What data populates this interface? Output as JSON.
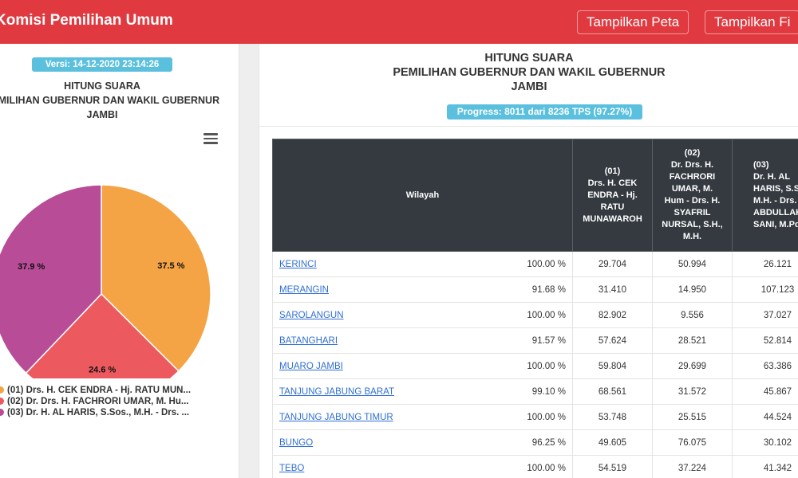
{
  "header": {
    "brand": "Komisi Pemilihan Umum",
    "btn_map": "Tampilkan Peta",
    "btn_filter": "Tampilkan Fi"
  },
  "left": {
    "version": "Versi: 14-12-2020 23:14:26",
    "title_line1": "HITUNG SUARA",
    "title_line2": "PEMILIHAN GUBERNUR DAN WAKIL GUBERNUR",
    "title_line3": "JAMBI",
    "menu_icon": "hamburger-menu-icon",
    "legend": [
      {
        "label": "(01) Drs. H. CEK ENDRA - Hj. RATU MUN...",
        "color": "#f4a444"
      },
      {
        "label": "(02) Dr. Drs. H. FACHRORI UMAR, M. Hu...",
        "color": "#ec5a60"
      },
      {
        "label": "(03) Dr. H. AL HARIS, S.Sos., M.H. - Drs. ...",
        "color": "#b84c96"
      }
    ]
  },
  "chart_data": {
    "type": "pie",
    "values": [
      37.5,
      24.6,
      37.9
    ],
    "labels": [
      "37.5 %",
      "24.6 %",
      "37.9 %"
    ],
    "colors": [
      "#f4a444",
      "#ec5a60",
      "#b84c96"
    ]
  },
  "right": {
    "title_line1": "HITUNG SUARA",
    "title_line2": "PEMILIHAN GUBERNUR DAN WAKIL GUBERNUR",
    "title_line3": "JAMBI",
    "progress": "Progress: 8011 dari 8236 TPS (97.27%)",
    "table": {
      "col_wilayah": "Wilayah",
      "col_01": [
        "(01)",
        "Drs. H. CEK",
        "ENDRA - Hj.",
        "RATU",
        "MUNAWAROH"
      ],
      "col_02": [
        "(02)",
        "Dr. Drs. H.",
        "FACHRORI",
        "UMAR, M.",
        "Hum - Drs. H.",
        "SYAFRIL",
        "NURSAL, S.H.,",
        "M.H."
      ],
      "col_03": [
        "(03)",
        "Dr. H. AL",
        "HARIS, S.Sos.,",
        "M.H. - Drs. H.",
        "ABDULLAH",
        "SANI, M.Pd.I."
      ],
      "rows": [
        {
          "name": "KERINCI",
          "pct": "100.00 %",
          "v1": "29.704",
          "v2": "50.994",
          "v3": "26.121"
        },
        {
          "name": "MERANGIN",
          "pct": "91.68 %",
          "v1": "31.410",
          "v2": "14.950",
          "v3": "107.123"
        },
        {
          "name": "SAROLANGUN",
          "pct": "100.00 %",
          "v1": "82.902",
          "v2": "9.556",
          "v3": "37.027"
        },
        {
          "name": "BATANGHARI",
          "pct": "91.57 %",
          "v1": "57.624",
          "v2": "28.521",
          "v3": "52.814"
        },
        {
          "name": "MUARO JAMBI",
          "pct": "100.00 %",
          "v1": "59.804",
          "v2": "29.699",
          "v3": "63.386"
        },
        {
          "name": "TANJUNG JABUNG BARAT",
          "pct": "99.10 %",
          "v1": "68.561",
          "v2": "31.572",
          "v3": "45.867"
        },
        {
          "name": "TANJUNG JABUNG TIMUR",
          "pct": "100.00 %",
          "v1": "53.748",
          "v2": "25.515",
          "v3": "44.524"
        },
        {
          "name": "BUNGO",
          "pct": "96.25 %",
          "v1": "49.605",
          "v2": "76.075",
          "v3": "30.102"
        },
        {
          "name": "TEBO",
          "pct": "100.00 %",
          "v1": "54.519",
          "v2": "37.224",
          "v3": "41.342"
        }
      ]
    }
  }
}
